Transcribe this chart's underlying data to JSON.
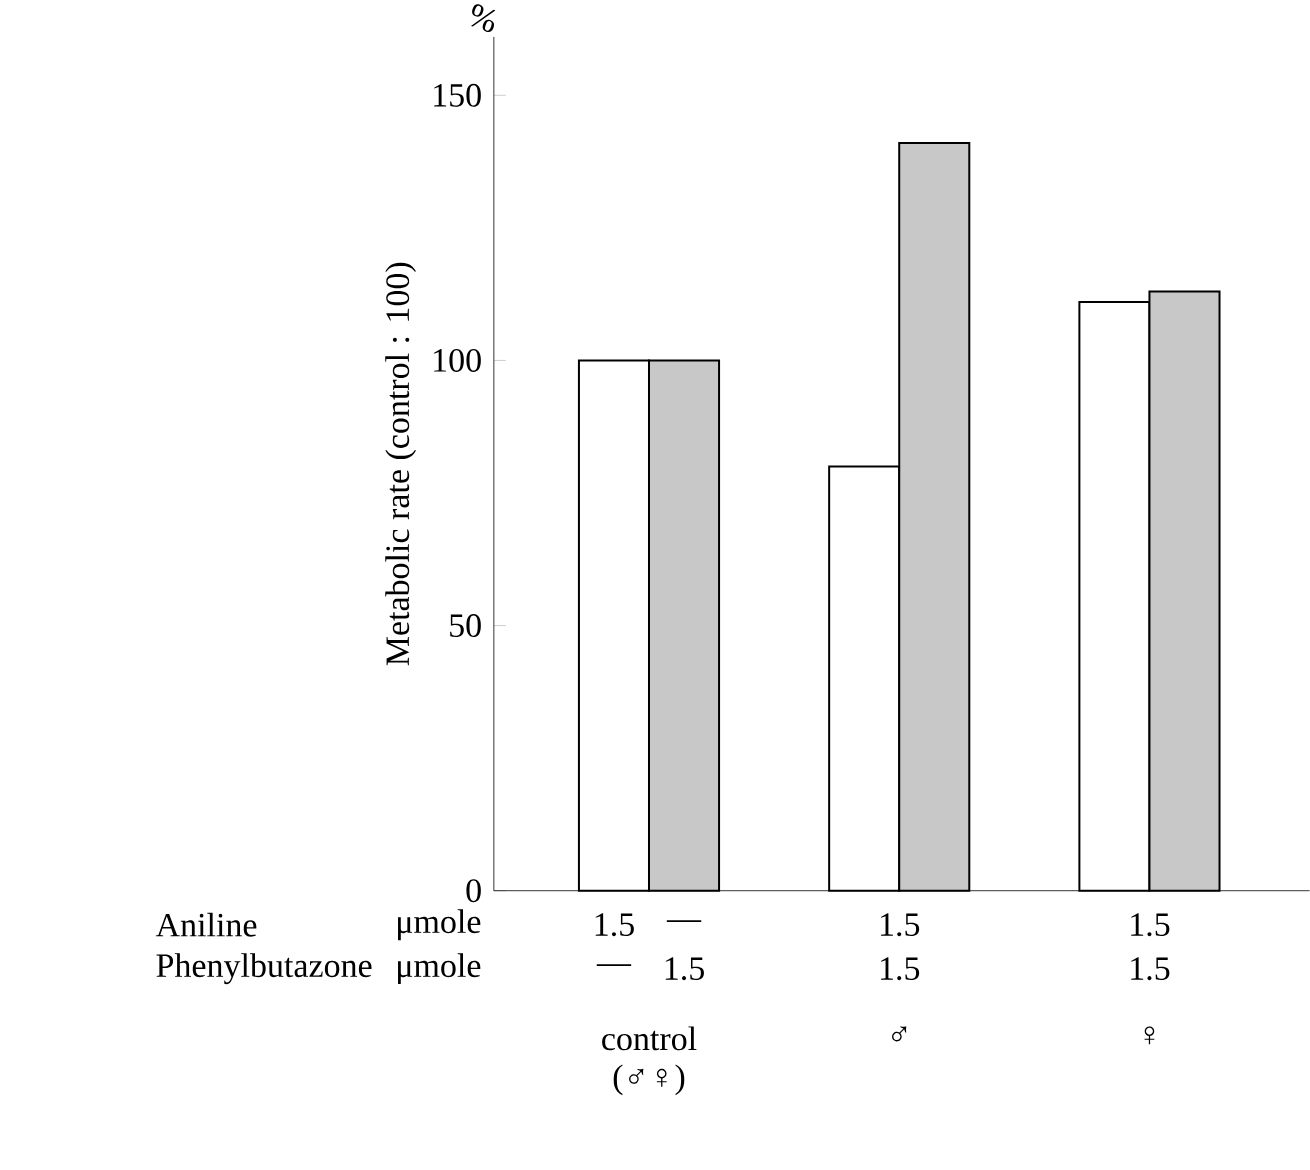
{
  "chart_data": {
    "type": "bar",
    "ylabel": "Metabolic rate  (control : 100)",
    "categories": [
      "control (♂♀)",
      "♂",
      "♀"
    ],
    "series": [
      {
        "color": "#ffffff",
        "values": [
          100,
          80,
          111
        ]
      },
      {
        "color": "#c8c8c8",
        "values": [
          100,
          141,
          113
        ]
      }
    ],
    "ylim": [
      0,
      161
    ],
    "yticks": [
      0,
      50,
      100,
      150
    ],
    "annotations": [
      "%",
      "Aniline",
      "μmole",
      "Phenylbutazone",
      "μmole",
      "1.5",
      "—",
      "1.5",
      "1.5",
      "—",
      "1.5",
      "1.5",
      "1.5"
    ]
  }
}
